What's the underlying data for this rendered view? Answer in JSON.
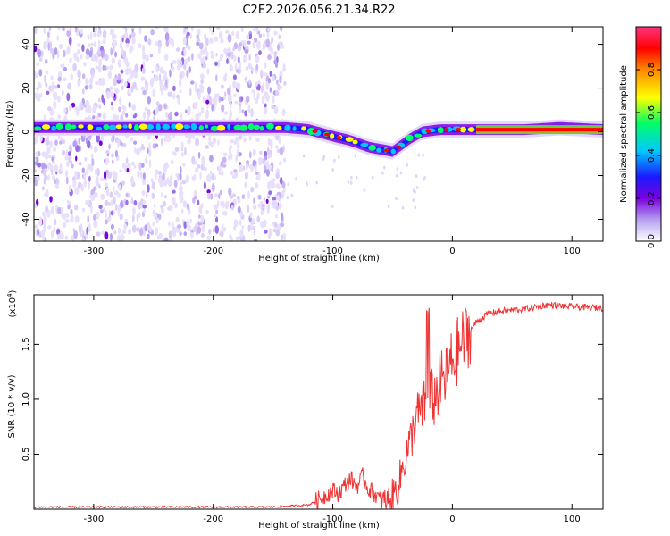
{
  "chart_data": [
    {
      "type": "heatmap",
      "title": "C2E2.2026.056.21.34.R22",
      "xlabel": "Height of straight line (km)",
      "ylabel": "Frequency (Hz)",
      "xlim": [
        -350,
        126
      ],
      "ylim": [
        -50,
        48
      ],
      "xticks": [
        -300,
        -200,
        -100,
        0,
        100
      ],
      "yticks": [
        -40,
        -20,
        0,
        20,
        40
      ],
      "xtick_labels": [
        "-300",
        "-200",
        "-100",
        "0",
        "100"
      ],
      "ytick_labels": [
        "-40",
        "-20",
        "0",
        "20",
        "40"
      ],
      "noise_region_x": [
        -350,
        -140
      ],
      "ridge": [
        {
          "x": -350,
          "y": 2
        },
        {
          "x": -300,
          "y": 2
        },
        {
          "x": -200,
          "y": 2
        },
        {
          "x": -140,
          "y": 2
        },
        {
          "x": -120,
          "y": 1
        },
        {
          "x": -100,
          "y": -2
        },
        {
          "x": -85,
          "y": -4
        },
        {
          "x": -70,
          "y": -7
        },
        {
          "x": -60,
          "y": -8
        },
        {
          "x": -50,
          "y": -9
        },
        {
          "x": -45,
          "y": -7
        },
        {
          "x": -35,
          "y": -3
        },
        {
          "x": -25,
          "y": 0
        },
        {
          "x": -10,
          "y": 1
        },
        {
          "x": 0,
          "y": 1
        },
        {
          "x": 30,
          "y": 1
        },
        {
          "x": 60,
          "y": 1
        },
        {
          "x": 90,
          "y": 2
        },
        {
          "x": 126,
          "y": 1
        }
      ],
      "colorbar": {
        "label": "Normalized spectral amplitude",
        "ticks": [
          0.0,
          0.2,
          0.4,
          0.6,
          0.8
        ],
        "tick_labels": [
          "0.0",
          "0.2",
          "0.4",
          "0.6",
          "0.8"
        ],
        "range": [
          0,
          1
        ],
        "colors": [
          "#ffffff",
          "#b59ff0",
          "#7a00e0",
          "#1a1aff",
          "#00c8ff",
          "#00ff66",
          "#ffff00",
          "#ff8800",
          "#ff0000",
          "#ff3380"
        ]
      }
    },
    {
      "type": "line",
      "xlabel": "Height of straight line (km)",
      "ylabel": "SNR (10 * v/v)",
      "scale_label_base": "(x10",
      "scale_label_exp": "4",
      "scale_label_end": ")",
      "xlim": [
        -350,
        126
      ],
      "ylim": [
        0,
        1.95
      ],
      "xticks": [
        -300,
        -200,
        -100,
        0,
        100
      ],
      "xtick_labels": [
        "-300",
        "-200",
        "-100",
        "0",
        "100"
      ],
      "yticks": [
        0.5,
        1.0,
        1.5
      ],
      "ytick_labels": [
        "0.5",
        "1.0",
        "1.5"
      ],
      "color": "#ee3333",
      "series": [
        {
          "name": "SNR",
          "x": [
            -350,
            -300,
            -250,
            -200,
            -150,
            -120,
            -110,
            -100,
            -95,
            -90,
            -85,
            -80,
            -75,
            -70,
            -65,
            -60,
            -55,
            -50,
            -45,
            -40,
            -35,
            -30,
            -25,
            -20,
            -15,
            -10,
            -5,
            0,
            10,
            20,
            30,
            40,
            60,
            80,
            100,
            126
          ],
          "y": [
            0.02,
            0.02,
            0.02,
            0.02,
            0.02,
            0.04,
            0.1,
            0.17,
            0.14,
            0.22,
            0.28,
            0.2,
            0.3,
            0.18,
            0.14,
            0.08,
            0.06,
            0.12,
            0.22,
            0.45,
            0.62,
            0.85,
            0.9,
            1.05,
            1.0,
            1.15,
            1.2,
            1.35,
            1.55,
            1.7,
            1.78,
            1.8,
            1.82,
            1.86,
            1.84,
            1.83
          ]
        }
      ]
    }
  ]
}
